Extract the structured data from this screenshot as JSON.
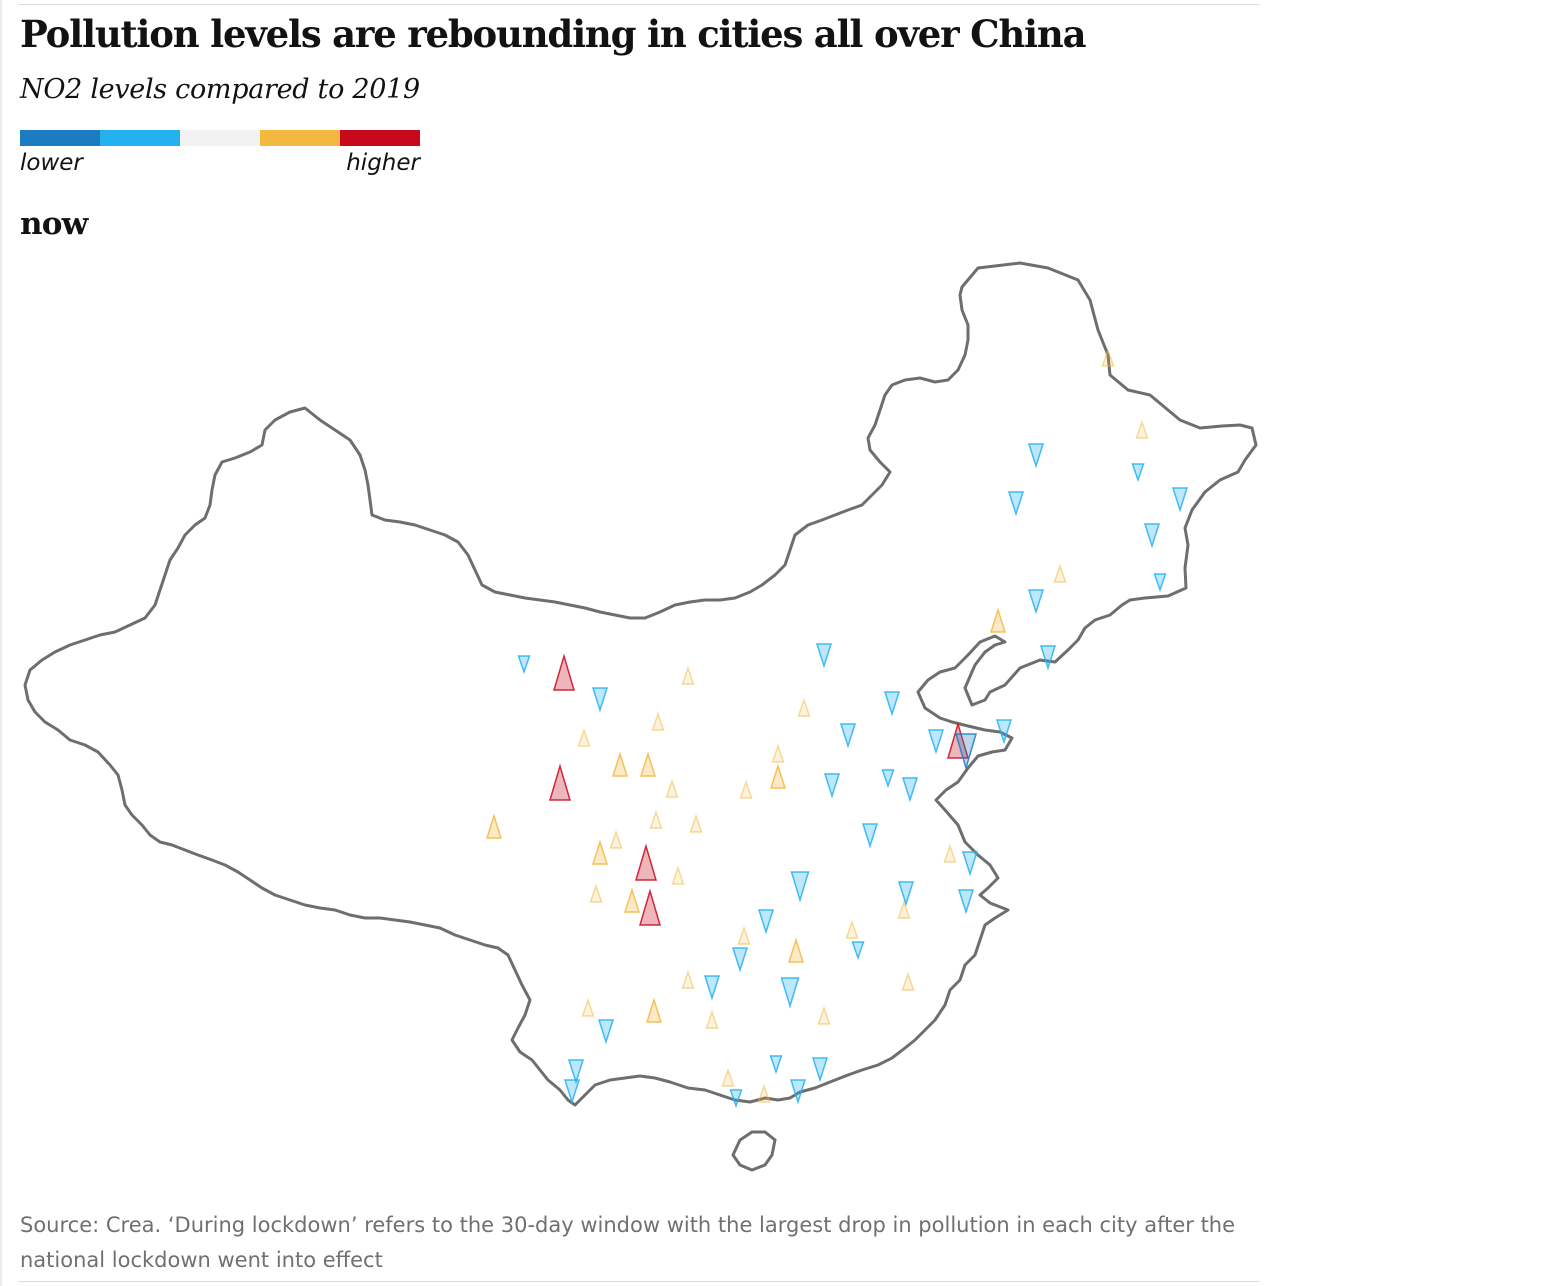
{
  "header": {
    "title": "Pollution levels are rebounding in cities all over China",
    "subtitle": "NO2 levels compared to 2019"
  },
  "legend": {
    "low_label": "lower",
    "high_label": "higher",
    "colors": [
      "#1b7cc1",
      "#24b1f0",
      "#f2f2f2",
      "#f3b83f",
      "#c8091c"
    ]
  },
  "map": {
    "panel_label": "now",
    "outline_color": "#6e6e6e"
  },
  "footer": {
    "source": "Source: Crea. ‘During lockdown’ refers to the 30-day window with the largest drop in pollution in each city after the national lockdown went into effect"
  }
}
